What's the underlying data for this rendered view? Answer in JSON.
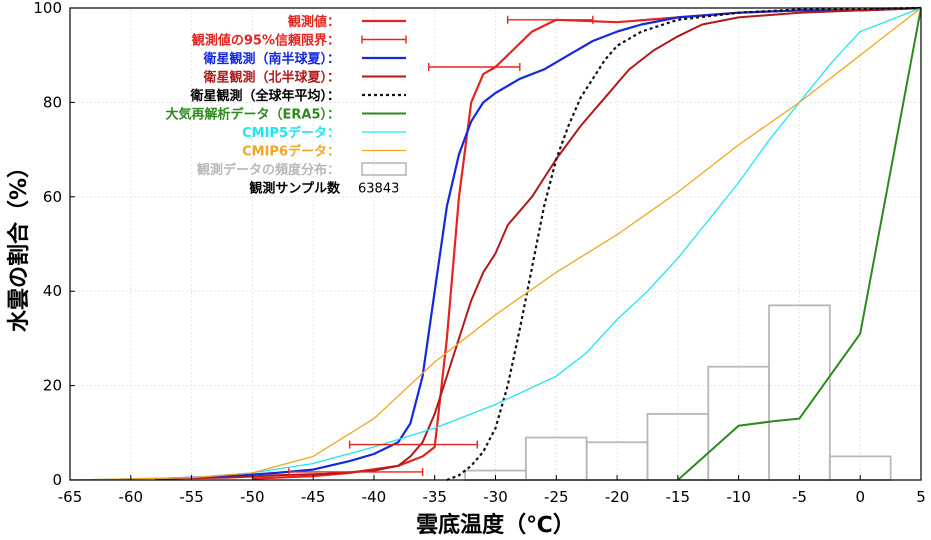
{
  "chart_data": {
    "type": "line",
    "title": "",
    "xlabel": "雲底温度（℃）",
    "ylabel": "水雲の割合（%）",
    "xlim": [
      -65,
      5
    ],
    "ylim": [
      0,
      100
    ],
    "xticks": [
      -65,
      -60,
      -55,
      -50,
      -45,
      -40,
      -35,
      -30,
      -25,
      -20,
      -15,
      -10,
      -5,
      0,
      5
    ],
    "yticks": [
      0,
      20,
      40,
      60,
      80,
      100
    ],
    "grid": true,
    "legend_position": "top-left",
    "sample_count": {
      "label": "観測サンプル数",
      "value": "63843"
    },
    "series": [
      {
        "name": "観測値",
        "color": "#e8231f",
        "style": "solid",
        "width": 2.2,
        "points": [
          [
            -50,
            0.3
          ],
          [
            -45,
            0.8
          ],
          [
            -42,
            1.5
          ],
          [
            -38,
            3
          ],
          [
            -36,
            5
          ],
          [
            -35,
            7
          ],
          [
            -34,
            30
          ],
          [
            -33,
            60
          ],
          [
            -32,
            80
          ],
          [
            -31,
            86
          ],
          [
            -30,
            87.5
          ],
          [
            -27,
            95
          ],
          [
            -25,
            97.5
          ],
          [
            -20,
            97
          ],
          [
            -15,
            98
          ],
          [
            -10,
            99
          ],
          [
            -5,
            99.5
          ],
          [
            0,
            99.5
          ],
          [
            5,
            100
          ]
        ]
      },
      {
        "name": "衛星観測（南半球夏）",
        "color": "#1428e0",
        "style": "solid",
        "width": 2.2,
        "points": [
          [
            -58,
            0.2
          ],
          [
            -52,
            0.8
          ],
          [
            -48,
            1.5
          ],
          [
            -45,
            2.2
          ],
          [
            -42,
            4
          ],
          [
            -40,
            5.5
          ],
          [
            -38,
            8
          ],
          [
            -37,
            12
          ],
          [
            -36,
            22
          ],
          [
            -35,
            40
          ],
          [
            -34,
            58
          ],
          [
            -33,
            69
          ],
          [
            -32,
            76
          ],
          [
            -31,
            80
          ],
          [
            -30,
            82
          ],
          [
            -28,
            85
          ],
          [
            -26,
            87
          ],
          [
            -24,
            90
          ],
          [
            -22,
            93
          ],
          [
            -20,
            95
          ],
          [
            -18,
            96.5
          ],
          [
            -15,
            98
          ],
          [
            -10,
            99
          ],
          [
            -5,
            99.5
          ],
          [
            0,
            99.5
          ],
          [
            5,
            100
          ]
        ]
      },
      {
        "name": "衛星観測（北半球夏）",
        "color": "#b01a1a",
        "style": "solid",
        "width": 2.0,
        "points": [
          [
            -58,
            0.3
          ],
          [
            -52,
            0.5
          ],
          [
            -48,
            1
          ],
          [
            -44,
            1.3
          ],
          [
            -40,
            2
          ],
          [
            -38,
            3
          ],
          [
            -37,
            5
          ],
          [
            -36,
            8
          ],
          [
            -35,
            14
          ],
          [
            -34,
            22
          ],
          [
            -33,
            30
          ],
          [
            -32,
            38
          ],
          [
            -31,
            44
          ],
          [
            -30,
            48
          ],
          [
            -29,
            54
          ],
          [
            -27,
            60
          ],
          [
            -25,
            68
          ],
          [
            -23,
            75
          ],
          [
            -21,
            81
          ],
          [
            -19,
            87
          ],
          [
            -17,
            91
          ],
          [
            -15,
            94
          ],
          [
            -13,
            96.5
          ],
          [
            -10,
            98
          ],
          [
            -5,
            99
          ],
          [
            0,
            99.5
          ],
          [
            5,
            100
          ]
        ]
      },
      {
        "name": "衛星観測（全球年平均）",
        "color": "#111111",
        "style": "dotted",
        "width": 2.2,
        "points": [
          [
            -34,
            0
          ],
          [
            -33,
            1
          ],
          [
            -32,
            3
          ],
          [
            -31,
            6
          ],
          [
            -30,
            11
          ],
          [
            -29,
            20
          ],
          [
            -28,
            32
          ],
          [
            -27,
            45
          ],
          [
            -26,
            58
          ],
          [
            -25,
            68
          ],
          [
            -24,
            75
          ],
          [
            -23,
            81
          ],
          [
            -22,
            85
          ],
          [
            -21,
            89
          ],
          [
            -20,
            92
          ],
          [
            -18,
            95
          ],
          [
            -15,
            97.5
          ],
          [
            -10,
            99
          ],
          [
            -5,
            99.7
          ],
          [
            0,
            99.8
          ],
          [
            5,
            100
          ]
        ]
      },
      {
        "name": "大気再解析データ（ERA5）",
        "color": "#2c8a1c",
        "style": "solid",
        "width": 2.0,
        "points": [
          [
            -15,
            0
          ],
          [
            -10,
            11.5
          ],
          [
            -7,
            12.5
          ],
          [
            -5,
            13
          ],
          [
            0,
            31
          ],
          [
            5,
            100
          ]
        ]
      },
      {
        "name": "CMIP5データ",
        "color": "#22e5ee",
        "style": "solid",
        "width": 1.3,
        "points": [
          [
            -65,
            0
          ],
          [
            -55,
            0.5
          ],
          [
            -50,
            1.5
          ],
          [
            -45,
            3.5
          ],
          [
            -40,
            7
          ],
          [
            -35,
            11
          ],
          [
            -30,
            16
          ],
          [
            -25,
            22
          ],
          [
            -22.5,
            27
          ],
          [
            -20,
            34
          ],
          [
            -17.5,
            40
          ],
          [
            -15,
            47
          ],
          [
            -12.5,
            55
          ],
          [
            -10,
            63
          ],
          [
            -7.5,
            72
          ],
          [
            -5,
            80
          ],
          [
            -2.5,
            88
          ],
          [
            0,
            95
          ],
          [
            5,
            100
          ]
        ]
      },
      {
        "name": "CMIP6データ",
        "color": "#f2a623",
        "style": "solid",
        "width": 1.3,
        "points": [
          [
            -65,
            0
          ],
          [
            -55,
            0.5
          ],
          [
            -50,
            1.5
          ],
          [
            -45,
            5
          ],
          [
            -40,
            13
          ],
          [
            -35,
            25
          ],
          [
            -30,
            35
          ],
          [
            -25,
            44
          ],
          [
            -20,
            52
          ],
          [
            -15,
            61
          ],
          [
            -10,
            71
          ],
          [
            -5,
            80
          ],
          [
            0,
            90
          ],
          [
            5,
            100
          ]
        ]
      }
    ],
    "error_bars": {
      "name": "観測値の95%信頼限界",
      "color": "#e8231f",
      "items": [
        {
          "y": 1.7,
          "xmin": -47,
          "xmax": -36
        },
        {
          "y": 7.5,
          "xmin": -42,
          "xmax": -31.5
        },
        {
          "y": 87.5,
          "xmin": -35.5,
          "xmax": -28
        },
        {
          "y": 97.5,
          "xmin": -29,
          "xmax": -22
        }
      ]
    },
    "histogram": {
      "name": "観測データの頻度分布",
      "color": "#b8b8b8",
      "bin_width": 5,
      "bins": [
        {
          "x0": -35,
          "value": 0
        },
        {
          "x0": -32.5,
          "value": 2
        },
        {
          "x0": -27.5,
          "value": 9
        },
        {
          "x0": -22.5,
          "value": 8
        },
        {
          "x0": -17.5,
          "value": 14
        },
        {
          "x0": -12.5,
          "value": 24
        },
        {
          "x0": -7.5,
          "value": 37
        },
        {
          "x0": -2.5,
          "value": 5
        }
      ]
    }
  }
}
